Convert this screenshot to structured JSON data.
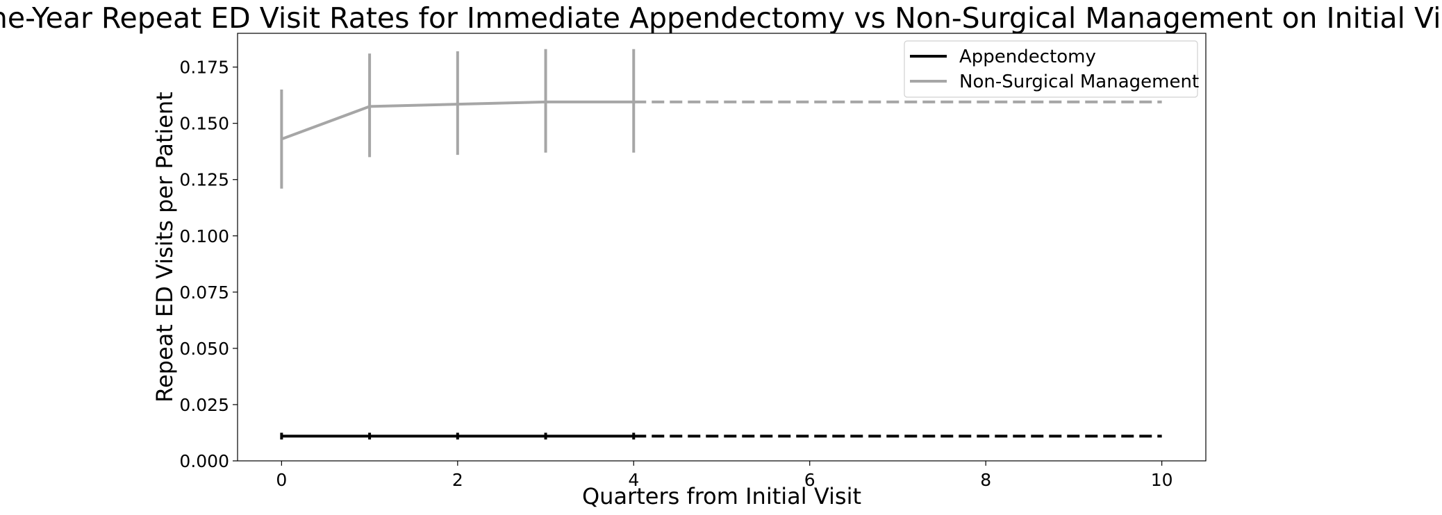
{
  "chart_data": {
    "type": "line",
    "title": "One-Year Repeat ED Visit Rates for Immediate Appendectomy vs Non-Surgical Management on Initial Visit",
    "xlabel": "Quarters from Initial Visit",
    "ylabel": "Repeat ED Visits per Patient",
    "xlim": [
      -0.5,
      10.5
    ],
    "ylim": [
      0,
      0.19
    ],
    "x_ticks": [
      0,
      2,
      4,
      6,
      8,
      10
    ],
    "x_tick_labels": [
      "0",
      "2",
      "4",
      "6",
      "8",
      "10"
    ],
    "y_ticks": [
      0.0,
      0.025,
      0.05,
      0.075,
      0.1,
      0.125,
      0.15,
      0.175
    ],
    "y_tick_labels": [
      "0.000",
      "0.025",
      "0.050",
      "0.075",
      "0.100",
      "0.125",
      "0.150",
      "0.175"
    ],
    "grid": false,
    "legend_position": "top-right",
    "series": [
      {
        "name": "Appendectomy",
        "color": "#000000",
        "x": [
          0,
          1,
          2,
          3,
          4
        ],
        "values": [
          0.011,
          0.011,
          0.011,
          0.011,
          0.011
        ],
        "error_lower": [
          0.0095,
          0.0095,
          0.0095,
          0.0095,
          0.0095
        ],
        "error_upper": [
          0.0125,
          0.0125,
          0.0125,
          0.0125,
          0.0125
        ],
        "extension": {
          "style": "dashed",
          "x": [
            4,
            10
          ],
          "values": [
            0.011,
            0.011
          ]
        }
      },
      {
        "name": "Non-Surgical Management",
        "color": "#a6a6a6",
        "x": [
          0,
          1,
          2,
          3,
          4
        ],
        "values": [
          0.143,
          0.1575,
          0.1585,
          0.1595,
          0.1595
        ],
        "error_lower": [
          0.121,
          0.135,
          0.136,
          0.137,
          0.137
        ],
        "error_upper": [
          0.165,
          0.181,
          0.182,
          0.183,
          0.183
        ],
        "extension": {
          "style": "dashed",
          "x": [
            4,
            10
          ],
          "values": [
            0.1595,
            0.1595
          ]
        }
      }
    ]
  }
}
